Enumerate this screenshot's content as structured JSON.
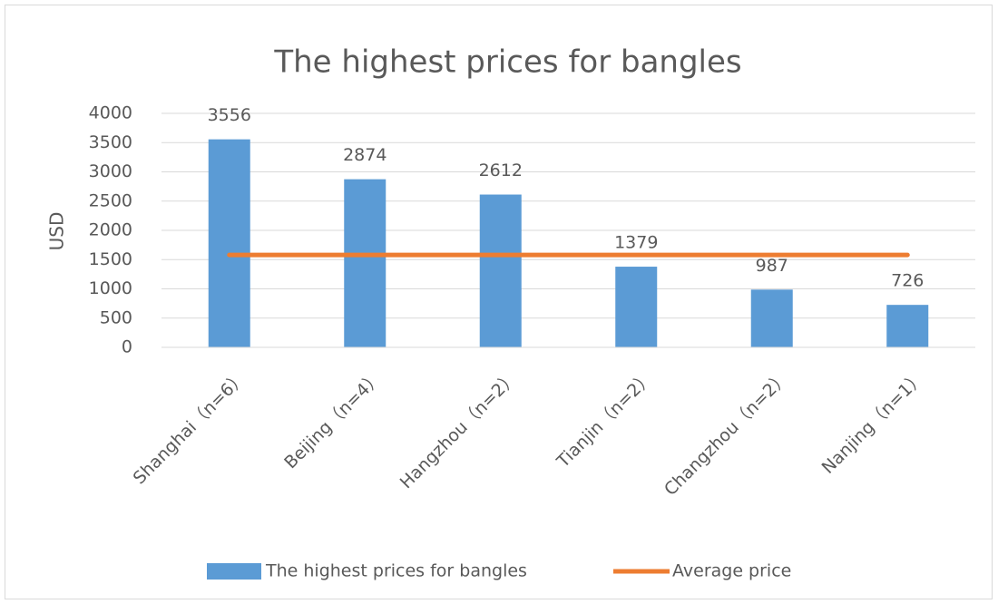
{
  "chart_data": {
    "type": "bar",
    "title": "The highest prices for bangles",
    "ylabel": "USD",
    "categories": [
      "Shanghai（n=6）",
      "Beijing（n=4）",
      "Hangzhou（n=2）",
      "Tianjin（n=2）",
      "Changzhou（n=2）",
      "Nanjing（n=1）"
    ],
    "series": [
      {
        "name": "The highest prices for bangles",
        "color": "#5b9bd5",
        "type": "bar",
        "values": [
          3556,
          2874,
          2612,
          1379,
          987,
          726
        ]
      },
      {
        "name": "Average price",
        "color": "#ed7d31",
        "type": "line",
        "values": [
          1580,
          1580,
          1580,
          1580,
          1580,
          1580
        ]
      }
    ],
    "ylim": [
      0,
      4000
    ],
    "yticks": [
      0,
      500,
      1000,
      1500,
      2000,
      2500,
      3000,
      3500,
      4000
    ],
    "grid": true,
    "legend": "bottom"
  }
}
